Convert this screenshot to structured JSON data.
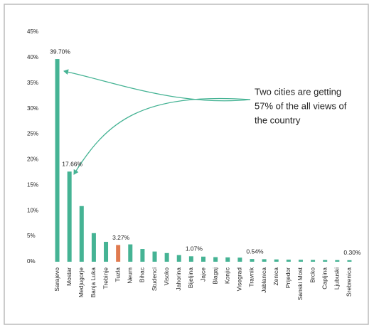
{
  "chart_data": {
    "type": "bar",
    "categories": [
      "Sarajevo",
      "Mostar",
      "Medjugorje",
      "Banja Luka",
      "Trebinje",
      "Tuzla",
      "Neum",
      "Bihac",
      "Studenci",
      "Visoko",
      "Jahorina",
      "Bijeljina",
      "Jajce",
      "Blagaj",
      "Konjic",
      "Visegrad",
      "Travnik",
      "Jablanica",
      "Zenica",
      "Prijedor",
      "Sanski Most",
      "Brcko",
      "Capljina",
      "Ljubuski",
      "Srebrenica"
    ],
    "values": [
      39.7,
      17.66,
      10.9,
      5.6,
      3.9,
      3.27,
      3.4,
      2.5,
      2.0,
      1.7,
      1.3,
      1.07,
      1.0,
      0.9,
      0.85,
      0.8,
      0.54,
      0.5,
      0.45,
      0.4,
      0.38,
      0.35,
      0.33,
      0.32,
      0.3
    ],
    "value_labels": [
      "39.70%",
      "17.66%",
      null,
      null,
      null,
      "3.27%",
      null,
      null,
      null,
      null,
      null,
      "1.07%",
      null,
      null,
      null,
      null,
      "0.54%",
      null,
      null,
      null,
      null,
      null,
      null,
      null,
      "0.30%"
    ],
    "colors": [
      "#45b394",
      "#45b394",
      "#45b394",
      "#45b394",
      "#45b394",
      "#e07a4f",
      "#45b394",
      "#45b394",
      "#45b394",
      "#45b394",
      "#45b394",
      "#45b394",
      "#45b394",
      "#45b394",
      "#45b394",
      "#45b394",
      "#45b394",
      "#45b394",
      "#45b394",
      "#45b394",
      "#45b394",
      "#45b394",
      "#45b394",
      "#45b394",
      "#45b394"
    ],
    "ylim": [
      0,
      45
    ],
    "yticks": [
      {
        "value": 0,
        "label": "0%"
      },
      {
        "value": 5,
        "label": "5%"
      },
      {
        "value": 10,
        "label": "10%"
      },
      {
        "value": 15,
        "label": "15%"
      },
      {
        "value": 20,
        "label": "20%"
      },
      {
        "value": 25,
        "label": "25%"
      },
      {
        "value": 30,
        "label": "30%"
      },
      {
        "value": 35,
        "label": "35%"
      },
      {
        "value": 40,
        "label": "40%"
      },
      {
        "value": 45,
        "label": "45%"
      }
    ],
    "annotation": [
      "Two cities are getting",
      "57% of the all views of",
      "the country"
    ]
  }
}
